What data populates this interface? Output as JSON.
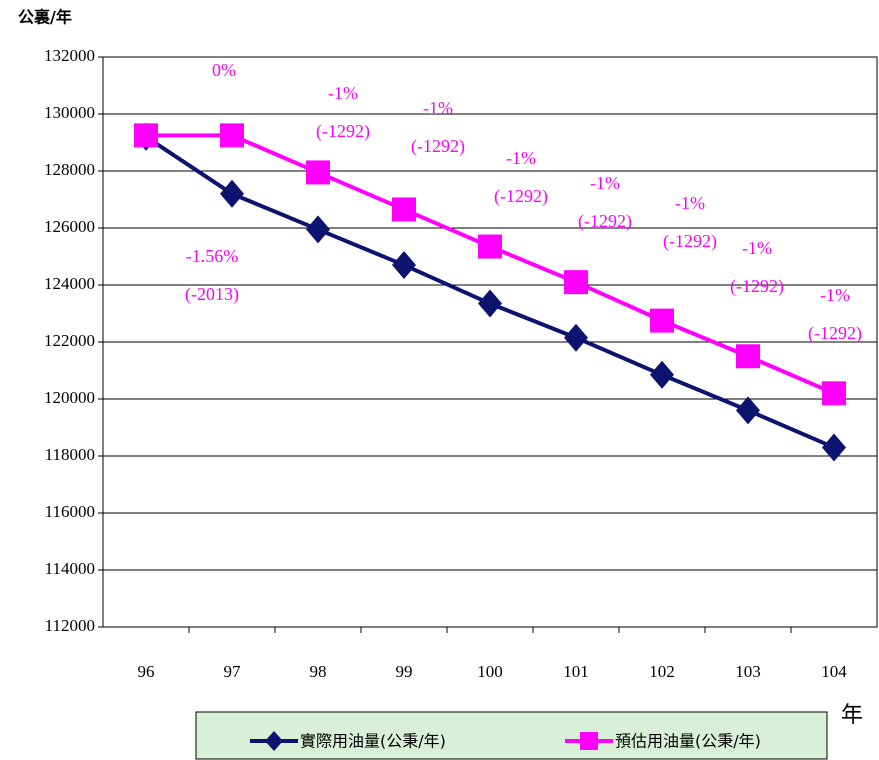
{
  "chart_data": {
    "type": "line",
    "y_label": "公裏/年",
    "x_label": "年",
    "categories": [
      "96",
      "97",
      "98",
      "99",
      "100",
      "101",
      "102",
      "103",
      "104"
    ],
    "series": [
      {
        "name": "實際用油量(公秉/年)",
        "color": "#0c1470",
        "marker": "diamond",
        "values": [
          129200,
          127200,
          125950,
          124700,
          123350,
          122150,
          120850,
          119600,
          118300
        ]
      },
      {
        "name": "預估用油量(公秉/年)",
        "color": "#ff00ff",
        "marker": "square",
        "values": [
          129250,
          129250,
          127950,
          126650,
          125350,
          124100,
          122750,
          121500,
          120200
        ]
      }
    ],
    "ylim": [
      112000,
      132000
    ],
    "yticks": [
      112000,
      114000,
      116000,
      118000,
      120000,
      122000,
      124000,
      126000,
      128000,
      130000,
      132000
    ],
    "grid": true,
    "annotations": [
      {
        "lines": [
          "0%"
        ]
      },
      {
        "lines": [
          "-1.56%",
          "(-2013)"
        ]
      },
      {
        "lines": [
          "-1%",
          "(-1292)"
        ]
      },
      {
        "lines": [
          "-1%",
          "(-1292)"
        ]
      },
      {
        "lines": [
          "-1%",
          "(-1292)"
        ]
      },
      {
        "lines": [
          "-1%",
          "(-1292)"
        ]
      },
      {
        "lines": [
          "-1%",
          "(-1292)"
        ]
      },
      {
        "lines": [
          "-1%",
          "(-1292)"
        ]
      },
      {
        "lines": [
          "-1%",
          "(-1292)"
        ]
      }
    ],
    "annotation_color": "#ff00ff",
    "legend_background": "#d8efd8"
  }
}
